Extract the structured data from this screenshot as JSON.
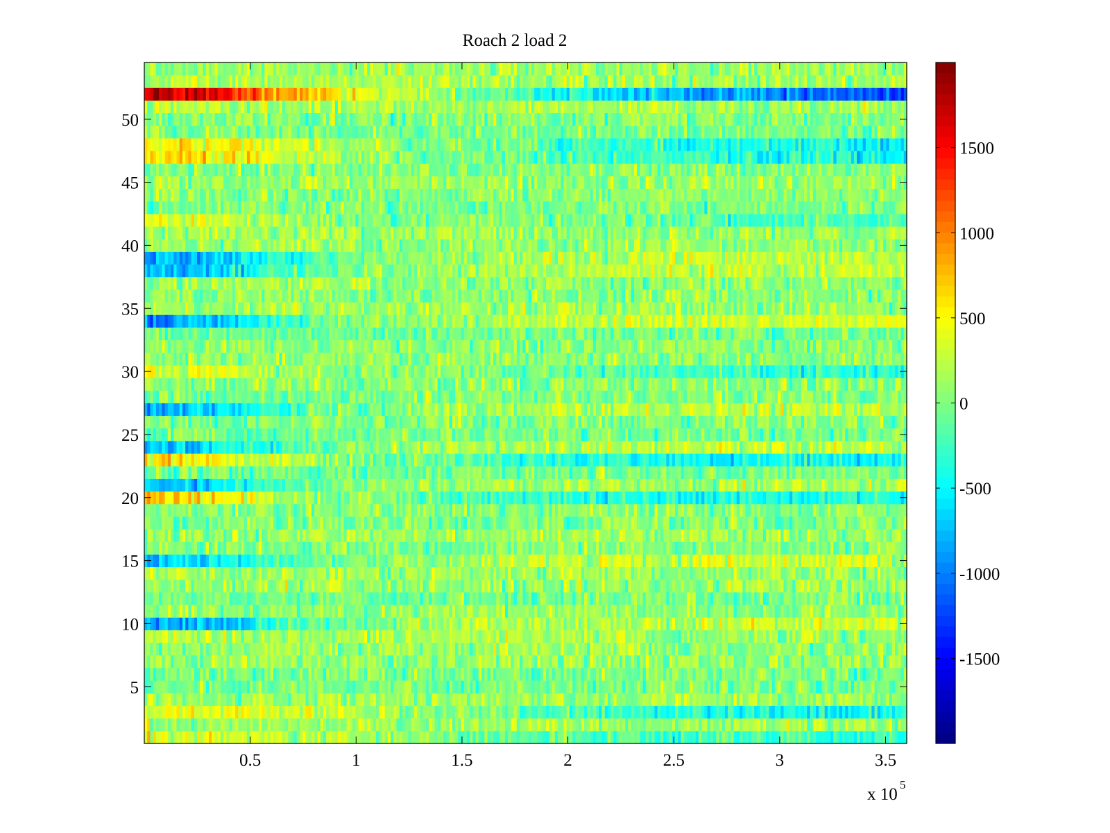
{
  "chart_data": {
    "type": "heatmap",
    "title": "Roach 2 load 2",
    "xlabel": "",
    "ylabel": "",
    "x_multiplier_base": "x 10",
    "x_multiplier_exponent": "5",
    "xlim": [
      0,
      3.6
    ],
    "ylim": [
      0.5,
      54.5
    ],
    "rows": 54,
    "xticks": [
      {
        "value": 0.5,
        "label": "0.5"
      },
      {
        "value": 1,
        "label": "1"
      },
      {
        "value": 1.5,
        "label": "1.5"
      },
      {
        "value": 2,
        "label": "2"
      },
      {
        "value": 2.5,
        "label": "2.5"
      },
      {
        "value": 3,
        "label": "3"
      },
      {
        "value": 3.5,
        "label": "3.5"
      }
    ],
    "yticks": [
      {
        "value": 5,
        "label": "5"
      },
      {
        "value": 10,
        "label": "10"
      },
      {
        "value": 15,
        "label": "15"
      },
      {
        "value": 20,
        "label": "20"
      },
      {
        "value": 25,
        "label": "25"
      },
      {
        "value": 30,
        "label": "30"
      },
      {
        "value": 35,
        "label": "35"
      },
      {
        "value": 40,
        "label": "40"
      },
      {
        "value": 45,
        "label": "45"
      },
      {
        "value": 50,
        "label": "50"
      }
    ],
    "colorbar": {
      "colormap": "jet",
      "clim": [
        -2000,
        2000
      ],
      "ticks": [
        {
          "value": 1500,
          "label": "1500"
        },
        {
          "value": 1000,
          "label": "1000"
        },
        {
          "value": 500,
          "label": "500"
        },
        {
          "value": 0,
          "label": "0"
        },
        {
          "value": -500,
          "label": "-500"
        },
        {
          "value": -1000,
          "label": "-1000"
        },
        {
          "value": -1500,
          "label": "-1500"
        }
      ]
    },
    "row_profiles": {
      "52": [
        1700,
        1700,
        1050,
        700,
        450,
        150,
        0,
        -300,
        -500,
        -600,
        -800,
        -900,
        -1000,
        -1100,
        -1200
      ],
      "48": [
        500,
        500,
        400,
        200,
        100,
        0,
        0,
        -100,
        -200,
        -300,
        -350,
        -400,
        -400,
        -450,
        -450
      ],
      "47": [
        600,
        600,
        450,
        250,
        100,
        0,
        0,
        -100,
        -200,
        -300,
        -350,
        -400,
        -400,
        -450,
        -450
      ],
      "42": [
        400,
        350,
        250,
        100,
        0,
        0,
        0,
        0,
        -50,
        -100,
        -150,
        -200,
        -200,
        -250,
        -250
      ],
      "39": [
        -900,
        -800,
        -500,
        -200,
        0,
        100,
        150,
        150,
        200,
        200,
        250,
        250,
        250,
        250,
        250
      ],
      "38": [
        -800,
        -700,
        -400,
        -150,
        0,
        100,
        150,
        150,
        200,
        200,
        250,
        250,
        250,
        300,
        300
      ],
      "34": [
        -900,
        -800,
        -500,
        -200,
        0,
        100,
        150,
        200,
        250,
        300,
        300,
        300,
        350,
        350,
        350
      ],
      "30": [
        450,
        400,
        250,
        100,
        0,
        0,
        0,
        -50,
        -100,
        -150,
        -200,
        -250,
        -300,
        -300,
        -300
      ],
      "27": [
        -800,
        -700,
        -400,
        -150,
        0,
        100,
        150,
        150,
        200,
        200,
        200,
        250,
        250,
        250,
        250
      ],
      "24": [
        -700,
        -600,
        -300,
        -100,
        0,
        100,
        150,
        150,
        200,
        200,
        250,
        250,
        250,
        250,
        250
      ],
      "23": [
        600,
        550,
        350,
        150,
        0,
        -100,
        -200,
        -300,
        -400,
        -450,
        -450,
        -500,
        -500,
        -500,
        -500
      ],
      "21": [
        -700,
        -600,
        -350,
        -100,
        0,
        100,
        100,
        100,
        150,
        150,
        150,
        150,
        150,
        150,
        150
      ],
      "20": [
        650,
        600,
        350,
        150,
        0,
        -100,
        -200,
        -300,
        -350,
        -400,
        -400,
        -400,
        -450,
        -450,
        -450
      ],
      "15": [
        -700,
        -600,
        -350,
        -100,
        0,
        100,
        150,
        200,
        250,
        250,
        300,
        300,
        300,
        300,
        300
      ],
      "10": [
        -900,
        -800,
        -500,
        -200,
        0,
        100,
        150,
        150,
        200,
        200,
        250,
        250,
        250,
        250,
        250
      ],
      "3": [
        450,
        400,
        350,
        250,
        150,
        50,
        0,
        -100,
        -200,
        -300,
        -350,
        -400,
        -400,
        -450,
        -450
      ],
      "1": [
        400,
        350,
        300,
        200,
        100,
        0,
        0,
        -100,
        -150,
        -200,
        -250,
        -300,
        -300,
        -300,
        -300
      ]
    }
  }
}
